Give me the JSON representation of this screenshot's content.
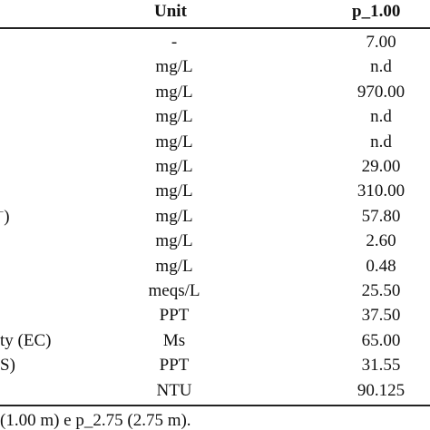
{
  "table": {
    "header": [
      "Unit",
      "p_1.00"
    ],
    "rows": [
      {
        "unit": "-",
        "value": "7.00"
      },
      {
        "unit": "mg/L",
        "value": "n.d"
      },
      {
        "unit": "mg/L",
        "value": "970.00"
      },
      {
        "unit": "mg/L",
        "value": "n.d"
      },
      {
        "unit": "mg/L",
        "value": "n.d"
      },
      {
        "unit": "mg/L",
        "value": "29.00"
      },
      {
        "unit": "mg/L",
        "value": "310.00"
      },
      {
        "label": ")",
        "label_sup": "−",
        "unit": "mg/L",
        "value": "57.80"
      },
      {
        "unit": "mg/L",
        "value": "2.60"
      },
      {
        "unit": "mg/L",
        "value": "0.48"
      },
      {
        "unit": "meqs/L",
        "value": "25.50"
      },
      {
        "unit": "PPT",
        "value": "37.50"
      },
      {
        "label": "ty (EC)",
        "unit": "Ms",
        "value": "65.00"
      },
      {
        "label": "S)",
        "unit": "PPT",
        "value": "31.55"
      },
      {
        "unit": "NTU",
        "value": "90.125"
      }
    ]
  },
  "footnote": "(1.00 m) e p_2.75 (2.75 m)."
}
